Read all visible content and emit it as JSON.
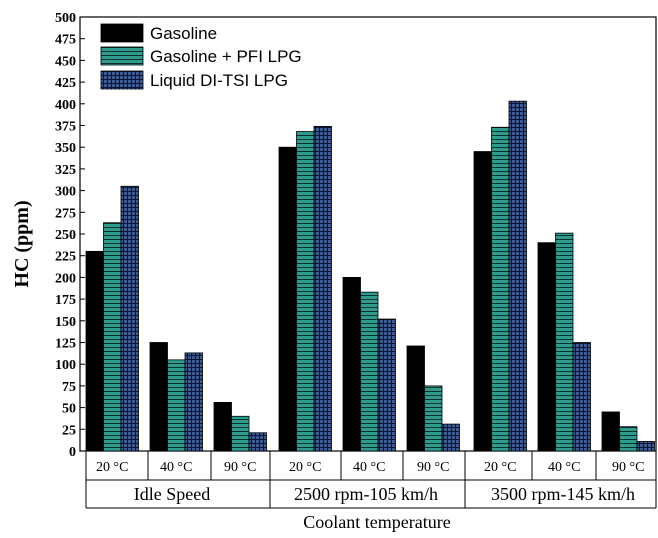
{
  "chart_data": {
    "type": "bar",
    "ylabel": "HC (ppm)",
    "xlabel": "Coolant temperature",
    "ylim": [
      0,
      500
    ],
    "yticks": [
      "0",
      "25",
      "50",
      "75",
      "100",
      "125",
      "150",
      "175",
      "200",
      "225",
      "250",
      "275",
      "300",
      "325",
      "350",
      "375",
      "400",
      "425",
      "450",
      "475",
      "500"
    ],
    "groups": [
      {
        "name": "Idle Speed",
        "categories": [
          "20 °C",
          "40 °C",
          "90 °C"
        ]
      },
      {
        "name": "2500 rpm-105 km/h",
        "categories": [
          "20 °C",
          "40 °C",
          "90 °C"
        ]
      },
      {
        "name": "3500 rpm-145 km/h",
        "categories": [
          "20 °C",
          "40 °C",
          "90 °C"
        ]
      }
    ],
    "series": [
      {
        "name": "Gasoline",
        "color": "#000000",
        "pattern": "solid",
        "values": [
          230,
          125,
          56,
          350,
          200,
          121,
          345,
          240,
          45
        ]
      },
      {
        "name": "Gasoline + PFI LPG",
        "color": "#2e9c8c",
        "pattern": "horizontal-lines",
        "values": [
          263,
          105,
          40,
          368,
          183,
          75,
          373,
          251,
          28
        ]
      },
      {
        "name": "Liquid DI-TSI LPG",
        "color": "#3d5b93",
        "pattern": "grid",
        "values": [
          305,
          113,
          21,
          374,
          152,
          31,
          403,
          125,
          11
        ]
      }
    ],
    "legend_position": "top-left",
    "grid": false
  }
}
